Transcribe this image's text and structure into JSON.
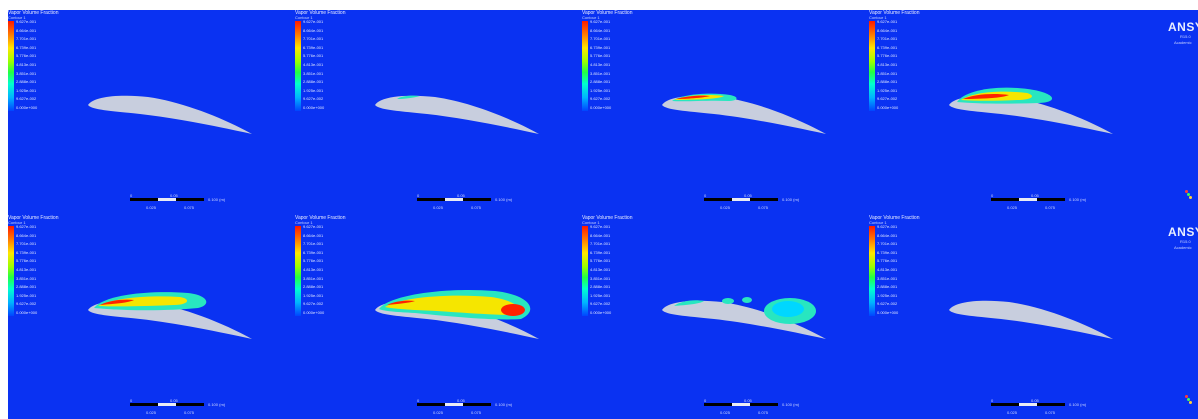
{
  "legend": {
    "title": "Vapor Volume Fraction",
    "subtitle": "Contour 1",
    "ticks": [
      "9.627e-001",
      "8.664e-001",
      "7.701e-001",
      "6.739e-001",
      "5.776e-001",
      "4.813e-001",
      "3.851e-001",
      "2.888e-001",
      "1.925e-001",
      "9.627e-002",
      "0.000e+000"
    ]
  },
  "scale": {
    "left_label": "0",
    "mid_label": "0.05",
    "right_label": "0.100 (m)",
    "sub_left": "0.025",
    "sub_right": "0.075"
  },
  "brand": {
    "name": "ANSYS",
    "version": "R15.0",
    "edition": "Academic"
  },
  "colors": {
    "background": "#0a32f2",
    "foil": "#c8cede",
    "cavity_outer": "#28e6c0",
    "cavity_mid": "#f5e600",
    "cavity_core": "#ff2200"
  },
  "panels": [
    {
      "id": "1",
      "cavity": "none"
    },
    {
      "id": "2",
      "cavity": "tiny"
    },
    {
      "id": "3",
      "cavity": "small"
    },
    {
      "id": "4",
      "cavity": "medium"
    },
    {
      "id": "5",
      "cavity": "long"
    },
    {
      "id": "6",
      "cavity": "full"
    },
    {
      "id": "7",
      "cavity": "shed"
    },
    {
      "id": "8",
      "cavity": "none"
    }
  ]
}
